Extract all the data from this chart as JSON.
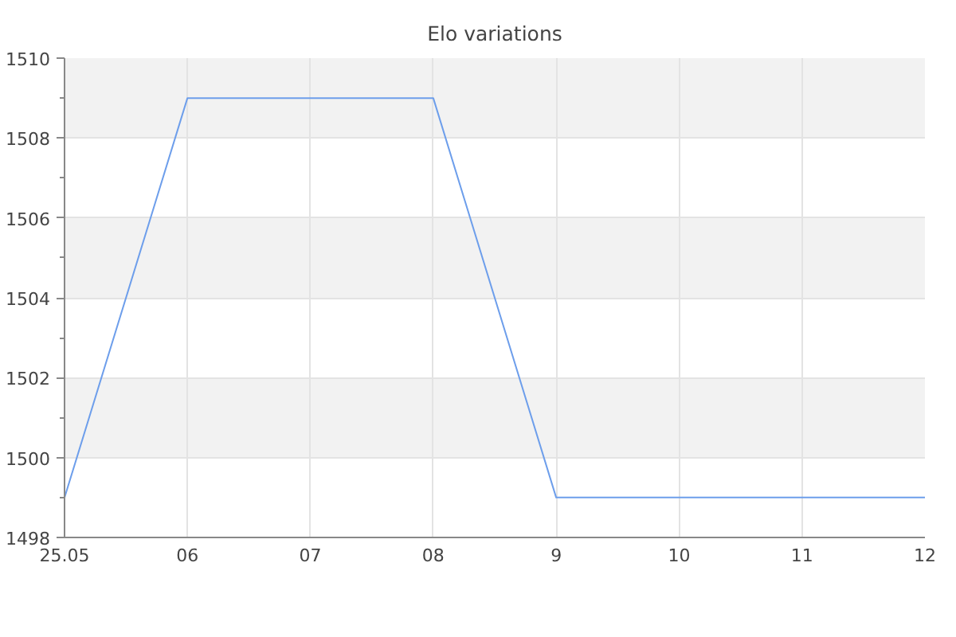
{
  "chart_data": {
    "type": "line",
    "title": "Elo variations",
    "categories": [
      "25.05",
      "06",
      "07",
      "08",
      "9",
      "10",
      "11",
      "12"
    ],
    "series": [
      {
        "color": "#6d9eeb",
        "values": [
          1499,
          1509,
          1509,
          1509,
          1499,
          1499,
          1499,
          1499
        ]
      }
    ],
    "ylim": [
      1498,
      1510
    ],
    "yticks": [
      1498,
      {
        "value": 1499,
        "label": null
      },
      1500,
      {
        "value": 1501,
        "label": null
      },
      1502,
      {
        "value": 1503,
        "label": null
      },
      1504,
      {
        "value": 1505,
        "label": null
      },
      1506,
      {
        "value": 1507,
        "label": null
      },
      1508,
      {
        "value": 1509,
        "label": null
      },
      1510
    ],
    "grid": true
  }
}
